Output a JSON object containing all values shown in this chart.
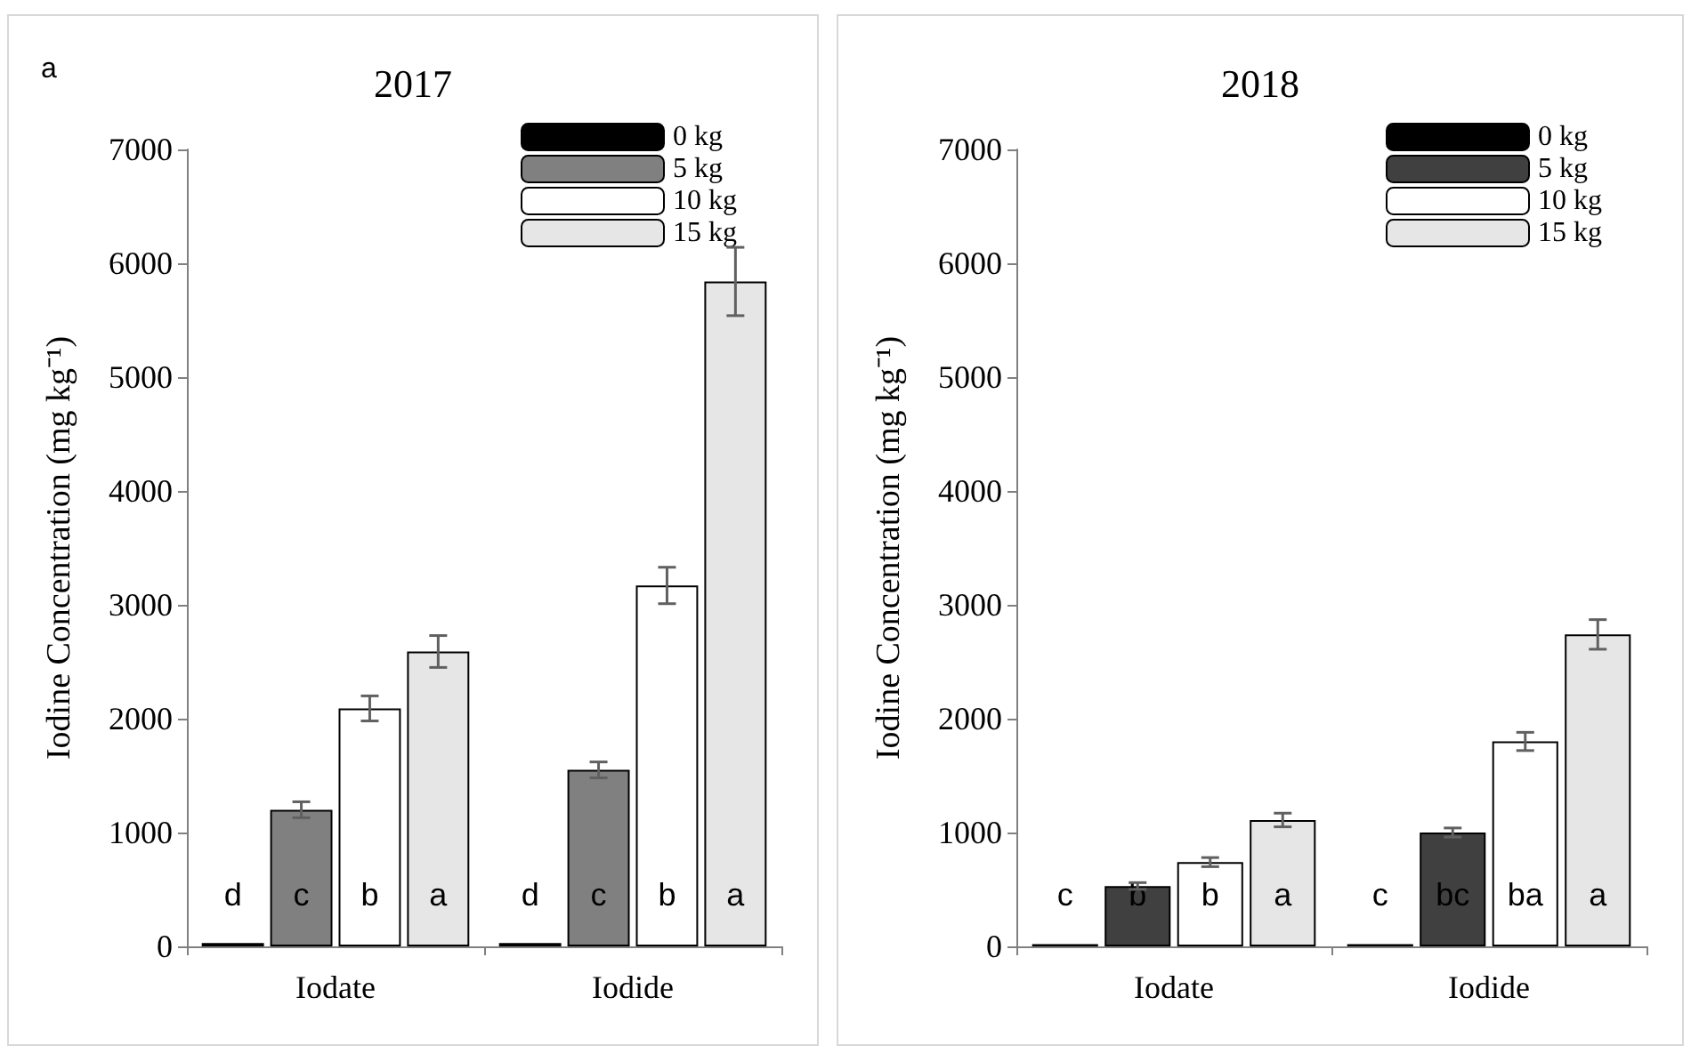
{
  "chart_data": [
    {
      "type": "bar",
      "title": "2017",
      "ylabel": "Iodine Concentration (mg kg⁻¹)",
      "annotations": [
        "a"
      ],
      "categories": [
        "Iodate",
        "Iodide"
      ],
      "ylim": [
        0,
        7000
      ],
      "yticks": [
        0,
        1000,
        2000,
        3000,
        4000,
        5000,
        6000,
        7000
      ],
      "grid": false,
      "legend": "top right",
      "series": [
        {
          "name": "0 kg",
          "color": "#000000",
          "values": [
            30,
            30
          ],
          "errors": [
            null,
            null
          ],
          "value_labels": [
            "d",
            "d"
          ]
        },
        {
          "name": "5 kg",
          "color": "#808080",
          "values": [
            1200,
            1550
          ],
          "errors": [
            70,
            70
          ],
          "value_labels": [
            "c",
            "c"
          ]
        },
        {
          "name": "10 kg",
          "color": "#ffffff",
          "values": [
            2090,
            3170
          ],
          "errors": [
            110,
            160
          ],
          "value_labels": [
            "b",
            "b"
          ]
        },
        {
          "name": "15 kg",
          "color": "#e6e6e6",
          "values": [
            2590,
            5840
          ],
          "errors": [
            140,
            300
          ],
          "value_labels": [
            "a",
            "a"
          ]
        }
      ]
    },
    {
      "type": "bar",
      "title": "2018",
      "ylabel": "Iodine Concentration (mg kg⁻¹)",
      "categories": [
        "Iodate",
        "Iodide"
      ],
      "ylim": [
        0,
        7000
      ],
      "yticks": [
        0,
        1000,
        2000,
        3000,
        4000,
        5000,
        6000,
        7000
      ],
      "grid": false,
      "legend": "top right",
      "series": [
        {
          "name": "0 kg",
          "color": "#000000",
          "values": [
            20,
            20
          ],
          "errors": [
            null,
            null
          ],
          "value_labels": [
            "c",
            "c"
          ]
        },
        {
          "name": "5 kg",
          "color": "#404040",
          "values": [
            530,
            1000
          ],
          "errors": [
            30,
            40
          ],
          "value_labels": [
            "b",
            "bc"
          ]
        },
        {
          "name": "10 kg",
          "color": "#ffffff",
          "values": [
            740,
            1800
          ],
          "errors": [
            40,
            80
          ],
          "value_labels": [
            "b",
            "ba"
          ]
        },
        {
          "name": "15 kg",
          "color": "#e6e6e6",
          "values": [
            1110,
            2740
          ],
          "errors": [
            60,
            130
          ],
          "value_labels": [
            "a",
            "a"
          ]
        }
      ]
    }
  ]
}
